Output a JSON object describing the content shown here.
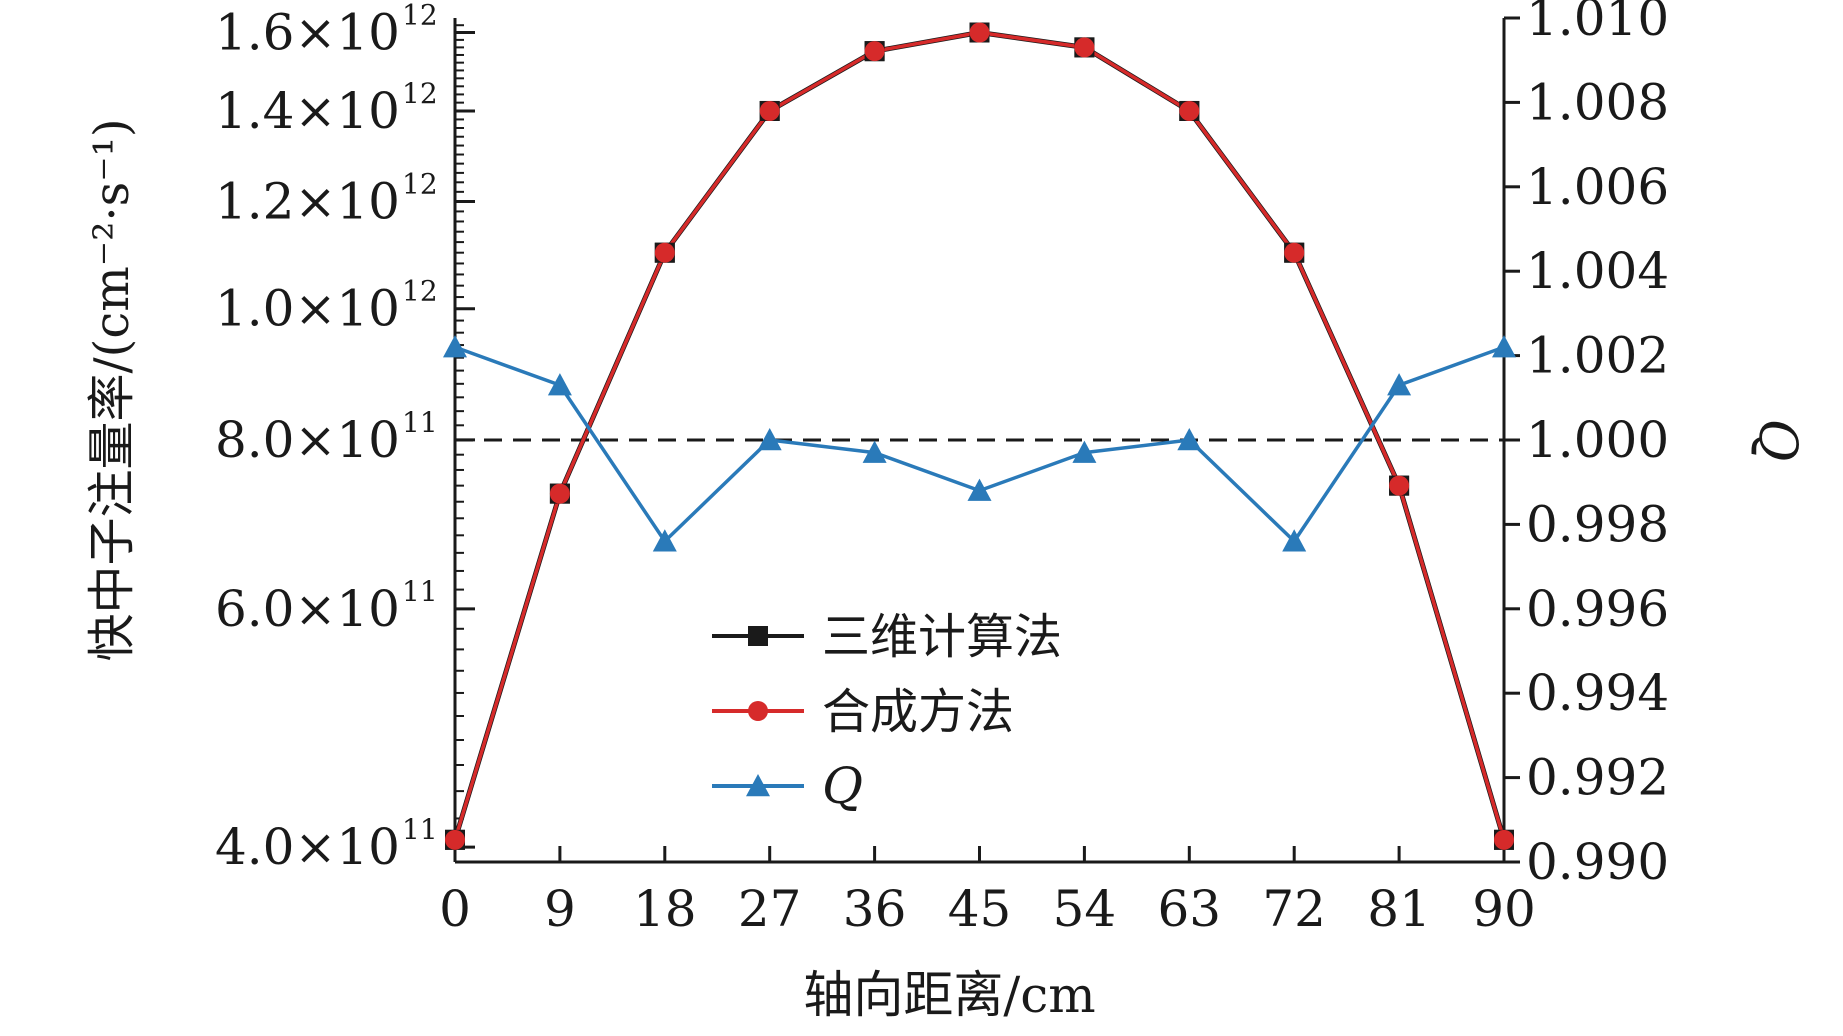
{
  "chart_data": {
    "type": "line",
    "xlabel": "轴向距离/cm",
    "ylabel_left": "快中子注量率/(cm⁻²·s⁻¹)",
    "ylabel_right": "Q",
    "x": [
      0,
      9,
      18,
      27,
      36,
      45,
      54,
      63,
      72,
      81,
      90
    ],
    "x_ticks": [
      "0",
      "9",
      "18",
      "27",
      "36",
      "45",
      "54",
      "63",
      "72",
      "81",
      "90"
    ],
    "xlim": [
      0,
      90
    ],
    "y_left_scale": "log",
    "y_left_ticks": [
      {
        "value": 400000000000,
        "mantissa": "4.0",
        "exponent": "11"
      },
      {
        "value": 600000000000,
        "mantissa": "6.0",
        "exponent": "11"
      },
      {
        "value": 800000000000,
        "mantissa": "8.0",
        "exponent": "11"
      },
      {
        "value": 1000000000000,
        "mantissa": "1.0",
        "exponent": "12"
      },
      {
        "value": 1200000000000,
        "mantissa": "1.2",
        "exponent": "12"
      },
      {
        "value": 1400000000000,
        "mantissa": "1.4",
        "exponent": "12"
      },
      {
        "value": 1600000000000,
        "mantissa": "1.6",
        "exponent": "12"
      }
    ],
    "y_left_times": "×10",
    "ylim_left": [
      390000000000,
      1640000000000
    ],
    "y_right_ticks": [
      "0.990",
      "0.992",
      "0.994",
      "0.996",
      "0.998",
      "1.000",
      "1.002",
      "1.004",
      "1.006",
      "1.008",
      "1.010"
    ],
    "ylim_right": [
      0.99,
      1.01
    ],
    "reference_line": {
      "axis": "right",
      "value": 1.0,
      "style": "dashed"
    },
    "series": [
      {
        "name": "三维计算法",
        "axis": "left",
        "marker": "square",
        "color": "#1a1a1a",
        "values": [
          405000000000,
          730000000000,
          1100000000000,
          1400000000000,
          1550000000000,
          1600000000000,
          1560000000000,
          1400000000000,
          1100000000000,
          740000000000,
          405000000000
        ]
      },
      {
        "name": "合成方法",
        "axis": "left",
        "marker": "circle",
        "color": "#d62a2a",
        "values": [
          405000000000,
          730000000000,
          1100000000000,
          1400000000000,
          1550000000000,
          1600000000000,
          1560000000000,
          1400000000000,
          1100000000000,
          740000000000,
          405000000000
        ]
      },
      {
        "name": "Q",
        "axis": "right",
        "marker": "triangle",
        "color": "#2a7ab9",
        "values": [
          1.0022,
          1.0013,
          0.9976,
          1.0,
          0.9997,
          0.9988,
          0.9997,
          1.0,
          0.9976,
          1.0013,
          1.0022
        ]
      }
    ],
    "legend_position": "lower-center",
    "grid": false
  }
}
